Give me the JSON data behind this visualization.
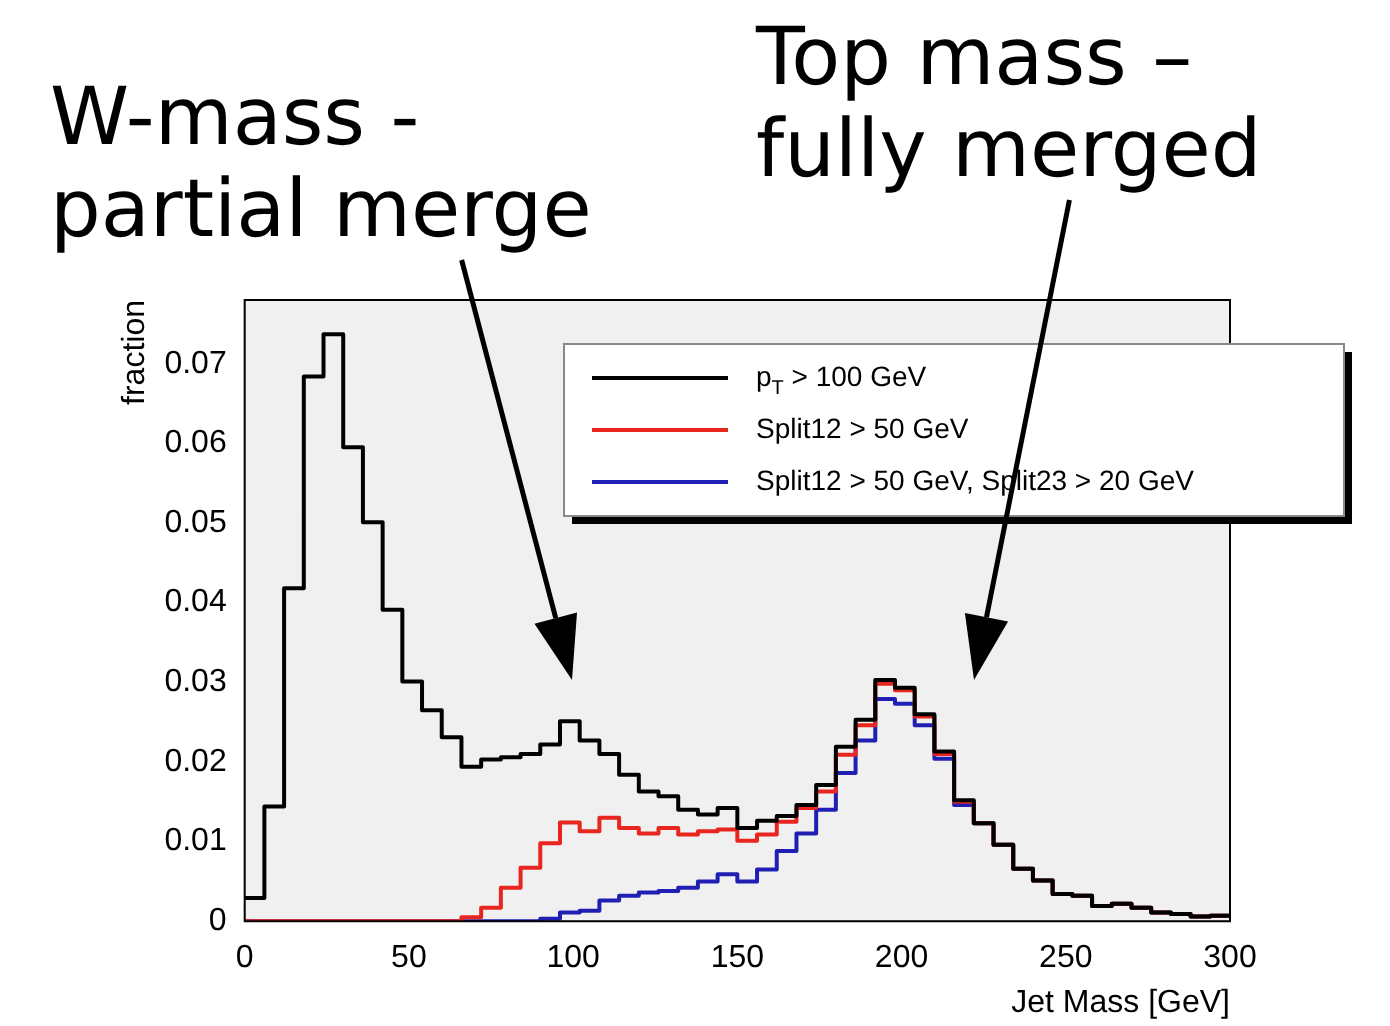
{
  "chart_data": {
    "type": "histogram",
    "xlabel": "Jet Mass [GeV]",
    "ylabel": "fraction",
    "bins": [
      0,
      6,
      12,
      18,
      24,
      30,
      36,
      42,
      48,
      54,
      60,
      66,
      72,
      78,
      84,
      90,
      96,
      102,
      108,
      114,
      120,
      126,
      132,
      138,
      144,
      150,
      156,
      162,
      168,
      174,
      180,
      186,
      192,
      198,
      204,
      210,
      216,
      222,
      228,
      234,
      240,
      246,
      252,
      258,
      264,
      270,
      276,
      282,
      288,
      294,
      300
    ],
    "series": [
      {
        "name": "p$_{T}$ > 100 GeV",
        "color": "#000000",
        "values": [
          0.0029,
          0.0144,
          0.0418,
          0.0684,
          0.0737,
          0.0595,
          0.0501,
          0.0391,
          0.0301,
          0.0265,
          0.0231,
          0.0194,
          0.0203,
          0.0206,
          0.021,
          0.0222,
          0.0251,
          0.0227,
          0.021,
          0.0184,
          0.0163,
          0.0157,
          0.014,
          0.0134,
          0.0142,
          0.0117,
          0.0126,
          0.0132,
          0.0146,
          0.0171,
          0.0219,
          0.0253,
          0.0303,
          0.0293,
          0.026,
          0.0213,
          0.0152,
          0.0123,
          0.0096,
          0.0066,
          0.0051,
          0.0034,
          0.0032,
          0.0019,
          0.0022,
          0.0017,
          0.0011,
          0.0009,
          0.0006,
          0.0007
        ]
      },
      {
        "name": "Split12 > 50 GeV",
        "color": "#e8251f",
        "values": [
          0,
          0,
          0,
          0,
          0,
          0,
          0,
          0,
          0,
          0,
          0,
          0.0005,
          0.0017,
          0.0042,
          0.0067,
          0.0098,
          0.0124,
          0.0113,
          0.013,
          0.0117,
          0.011,
          0.0117,
          0.0109,
          0.0113,
          0.0115,
          0.0101,
          0.0109,
          0.0125,
          0.0142,
          0.0163,
          0.0209,
          0.0246,
          0.0298,
          0.029,
          0.0257,
          0.021,
          0.015,
          0.0123,
          0.0096,
          0.0066,
          0.0051,
          0.0034,
          0.0032,
          0.0019,
          0.0022,
          0.0017,
          0.0011,
          0.0009,
          0.0006,
          0.0007
        ]
      },
      {
        "name": "Split12 > 50 GeV, Split23 > 20 GeV",
        "color": "#1f1fb4",
        "values": [
          0,
          0,
          0,
          0,
          0,
          0,
          0,
          0,
          0,
          0,
          0,
          0,
          0,
          0,
          0,
          0.0003,
          0.0011,
          0.0013,
          0.0026,
          0.0032,
          0.0036,
          0.0038,
          0.0042,
          0.005,
          0.0059,
          0.005,
          0.0065,
          0.0088,
          0.011,
          0.014,
          0.0186,
          0.0227,
          0.0279,
          0.0273,
          0.0246,
          0.0204,
          0.0146,
          0.0123,
          0.0096,
          0.0066,
          0.0051,
          0.0034,
          0.0032,
          0.0019,
          0.0022,
          0.0017,
          0.0011,
          0.0009,
          0.0006,
          0.0007
        ]
      }
    ],
    "xlim": [
      0,
      300
    ],
    "xticks": [
      0,
      50,
      100,
      150,
      200,
      250,
      300
    ],
    "ylim": [
      0,
      0.078
    ],
    "yticks": [
      0,
      0.01,
      0.02,
      0.03,
      0.04,
      0.05,
      0.06,
      0.07
    ],
    "grid": false,
    "legend": "top right",
    "annotations": [
      "W-mass -\npartial merge",
      "Top mass –\nfully merged"
    ]
  }
}
